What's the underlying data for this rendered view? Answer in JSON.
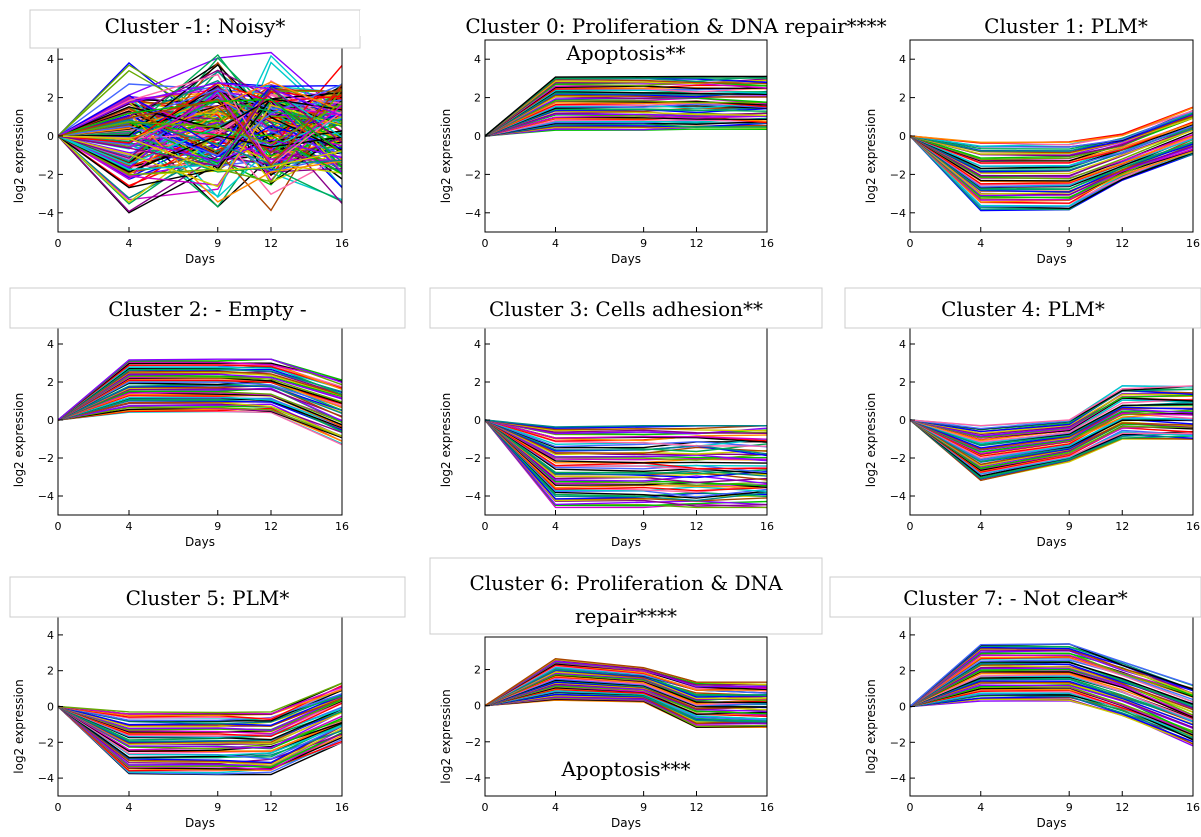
{
  "chart_data": [
    {
      "type": "line",
      "title": "Cluster -1: Noisy*",
      "xlabel": "Days",
      "ylabel": "log2 expression",
      "x": [
        0,
        4,
        9,
        12,
        16
      ],
      "xticks": [
        "0",
        "4",
        "9",
        "12",
        "16"
      ],
      "yticks": [
        "4",
        "2",
        "0",
        "−2",
        "−4"
      ],
      "ylim": [
        -5,
        5
      ],
      "profile": "noisy",
      "envelope": {
        "max": [
          0,
          4,
          4.7,
          4.7,
          4.7
        ],
        "min": [
          0,
          -4.1,
          -3.8,
          -4,
          -4
        ]
      },
      "series_count": 180
    },
    {
      "type": "line",
      "title": "Cluster 0: Proliferation & DNA repair****",
      "subtitle": "Apoptosis**",
      "xlabel": "Days",
      "ylabel": "log2 expression",
      "x": [
        0,
        4,
        9,
        12,
        16
      ],
      "xticks": [
        "0",
        "4",
        "9",
        "12",
        "16"
      ],
      "yticks": [
        "4",
        "2",
        "0",
        "−2",
        "−4"
      ],
      "ylim": [
        -5,
        5
      ],
      "profile": "up-flat",
      "envelope": {
        "max": [
          0,
          3.1,
          3.1,
          3.1,
          3.1
        ],
        "min": [
          0,
          0.3,
          0.3,
          0.3,
          0.3
        ]
      },
      "series_count": 60
    },
    {
      "type": "line",
      "title": "Cluster 1: PLM*",
      "xlabel": "Days",
      "ylabel": "log2 expression",
      "x": [
        0,
        4,
        9,
        12,
        16
      ],
      "xticks": [
        "0",
        "4",
        "9",
        "12",
        "16"
      ],
      "yticks": [
        "4",
        "2",
        "0",
        "−2",
        "−4"
      ],
      "ylim": [
        -5,
        5
      ],
      "profile": "down-recover",
      "envelope": {
        "max": [
          0,
          -0.3,
          -0.3,
          0.1,
          1.5
        ],
        "min": [
          0,
          -3.9,
          -3.9,
          -2.3,
          -1.0
        ]
      },
      "series_count": 60
    },
    {
      "type": "line",
      "title": "Cluster 2: - Empty -",
      "xlabel": "Days",
      "ylabel": "log2 expression",
      "x": [
        0,
        4,
        9,
        12,
        16
      ],
      "xticks": [
        "0",
        "4",
        "9",
        "12",
        "16"
      ],
      "yticks": [
        "4",
        "2",
        "0",
        "−2",
        "−4"
      ],
      "ylim": [
        -5,
        5
      ],
      "profile": "up-flat-down",
      "envelope": {
        "max": [
          0,
          3.2,
          3.2,
          3.2,
          2.1
        ],
        "min": [
          0,
          0.4,
          0.4,
          0.4,
          -1.3
        ]
      },
      "series_count": 60
    },
    {
      "type": "line",
      "title": "Cluster 3: Cells adhesion**",
      "xlabel": "Days",
      "ylabel": "log2 expression",
      "x": [
        0,
        4,
        9,
        12,
        16
      ],
      "xticks": [
        "0",
        "4",
        "9",
        "12",
        "16"
      ],
      "yticks": [
        "4",
        "2",
        "0",
        "−2",
        "−4"
      ],
      "ylim": [
        -5,
        5
      ],
      "profile": "down-flat",
      "envelope": {
        "max": [
          0,
          -0.3,
          -0.3,
          -0.3,
          -0.3
        ],
        "min": [
          0,
          -4.6,
          -4.6,
          -4.6,
          -4.6
        ]
      },
      "series_count": 60
    },
    {
      "type": "line",
      "title": "Cluster 4: PLM*",
      "xlabel": "Days",
      "ylabel": "log2 expression",
      "x": [
        0,
        4,
        9,
        12,
        16
      ],
      "xticks": [
        "0",
        "4",
        "9",
        "12",
        "16"
      ],
      "yticks": [
        "4",
        "2",
        "0",
        "−2",
        "−4"
      ],
      "ylim": [
        -5,
        5
      ],
      "profile": "dip-rise-flat",
      "envelope": {
        "max": [
          0,
          -0.3,
          0,
          1.8,
          1.8
        ],
        "min": [
          0,
          -3.2,
          -2.2,
          -1.0,
          -1.0
        ]
      },
      "series_count": 60
    },
    {
      "type": "line",
      "title": "Cluster 5: PLM*",
      "xlabel": "Days",
      "ylabel": "log2 expression",
      "x": [
        0,
        4,
        9,
        12,
        16
      ],
      "xticks": [
        "0",
        "4",
        "9",
        "12",
        "16"
      ],
      "yticks": [
        "4",
        "2",
        "0",
        "−2",
        "−4"
      ],
      "ylim": [
        -5,
        5
      ],
      "profile": "down-flat-up",
      "envelope": {
        "max": [
          0,
          -0.3,
          -0.3,
          -0.3,
          1.3
        ],
        "min": [
          0,
          -3.8,
          -3.8,
          -3.8,
          -2.0
        ]
      },
      "series_count": 60
    },
    {
      "type": "line",
      "title": "Cluster 6: Proliferation & DNA repair****",
      "subtitle": "Apoptosis***",
      "xlabel": "Days",
      "ylabel": "log2 expression",
      "x": [
        0,
        4,
        9,
        12,
        16
      ],
      "xticks": [
        "0",
        "4",
        "9",
        "12",
        "16"
      ],
      "yticks": [
        "2",
        "0",
        "−2",
        "−4"
      ],
      "ylim": [
        -5,
        3.8
      ],
      "profile": "up-then-down",
      "envelope": {
        "max": [
          0,
          2.6,
          2.1,
          1.3,
          1.3
        ],
        "min": [
          0,
          0.3,
          0.2,
          -1.2,
          -1.2
        ]
      },
      "series_count": 60
    },
    {
      "type": "line",
      "title": "Cluster 7: - Not clear*",
      "xlabel": "Days",
      "ylabel": "log2 expression",
      "x": [
        0,
        4,
        9,
        12,
        16
      ],
      "xticks": [
        "0",
        "4",
        "9",
        "12",
        "16"
      ],
      "yticks": [
        "4",
        "2",
        "0",
        "−2",
        "−4"
      ],
      "ylim": [
        -5,
        5
      ],
      "profile": "up-plateau-down",
      "envelope": {
        "max": [
          0,
          3.5,
          3.5,
          2.5,
          1.2
        ],
        "min": [
          0,
          0.3,
          0.3,
          -0.5,
          -2.2
        ]
      },
      "series_count": 60
    }
  ],
  "colors": {
    "palette": [
      "#ff0000",
      "#00c000",
      "#0000ff",
      "#00cccc",
      "#cc00cc",
      "#cccc00",
      "#000000",
      "#ff8800",
      "#8800ff",
      "#008888",
      "#ff66aa",
      "#66aa00",
      "#aa4400",
      "#4466ff",
      "#000000",
      "#880088",
      "#00aa55"
    ]
  }
}
